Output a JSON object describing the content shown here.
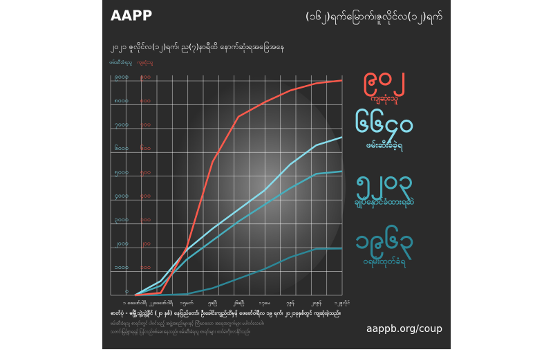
{
  "chart_data": {
    "type": "line",
    "header": "AAPP",
    "title": "(၁၆၂)ရက်မြောက်၊ဇူလိုင်လ(၁၂)ရက်",
    "subtitle": "၂၀၂၁  ဇူလိုင်လ(၁၂)ရက်၊  ည(၇)နာရီထိ    နောက်ဆုံးရအခြေအနေ",
    "y_label": "ဖမ်းဆီးခံရသူ",
    "y2_label": "ကျဆုံးသူ",
    "categories": [
      "၁ ဖေဖော်ဝါရီ",
      "၂၂ဖေဖော်ဝါရီ",
      "၁၅မတ်",
      "၅ဧပြီ",
      "၂၆ဧပြီ",
      "၁၇မေ",
      "၇ဇွန်",
      "၂၈ဇွန်",
      "၁၂ဇူလိုင်"
    ],
    "ylim": [
      0,
      9000
    ],
    "yticks": [
      {
        "value": 0,
        "label": "၀"
      },
      {
        "value": 1000,
        "label": "၁၀၀၀"
      },
      {
        "value": 2000,
        "label": "၂၀၀၀"
      },
      {
        "value": 3000,
        "label": "၃၀၀၀"
      },
      {
        "value": 4000,
        "label": "၄၀၀၀"
      },
      {
        "value": 5000,
        "label": "၅၀၀၀"
      },
      {
        "value": 6000,
        "label": "၆၀၀၀"
      },
      {
        "value": 7000,
        "label": "၇၀၀၀"
      },
      {
        "value": 8000,
        "label": "၈၀၀၀"
      },
      {
        "value": 9000,
        "label": "၉၀၀၀"
      }
    ],
    "y2lim": [
      0,
      900
    ],
    "y2ticks": [
      {
        "value": 100,
        "label": "၁၀၀"
      },
      {
        "value": 200,
        "label": "၂၀၀"
      },
      {
        "value": 300,
        "label": "၃၀၀"
      },
      {
        "value": 400,
        "label": "၄၀၀"
      },
      {
        "value": 500,
        "label": "၅၀၀"
      },
      {
        "value": 600,
        "label": "၆၀၀"
      },
      {
        "value": 700,
        "label": "၇၀၀"
      },
      {
        "value": 800,
        "label": "၈၀၀"
      },
      {
        "value": 900,
        "label": "၉၀၀"
      }
    ],
    "grid": true,
    "series": [
      {
        "name": "ကျဆုံးသူ",
        "color": "#ff5a4c",
        "axis": "y2",
        "values": [
          0,
          10,
          200,
          560,
          750,
          810,
          860,
          890,
          902
        ],
        "value_labels": [
          null,
          null,
          null,
          null,
          null,
          null,
          null,
          null,
          "၉၀၂"
        ]
      },
      {
        "name": "ဖမ်းဆီးခံခဲ့ရ",
        "color": "#86dcec",
        "values": [
          0,
          600,
          1900,
          2800,
          3600,
          4400,
          5500,
          6300,
          6640
        ],
        "value_labels": [
          null,
          null,
          null,
          null,
          null,
          null,
          null,
          null,
          "၆၆၄၀"
        ]
      },
      {
        "name": "ချုပ်နှောင်ခံထားရဆဲ",
        "color": "#46aebd",
        "values": [
          0,
          400,
          1500,
          2300,
          3100,
          3800,
          4500,
          5100,
          5203
        ],
        "value_labels": [
          null,
          null,
          null,
          null,
          null,
          null,
          null,
          null,
          "၅၂၀၃"
        ]
      },
      {
        "name": "ဝရမ်းထုတ်ခံရ",
        "color": "#2c8797",
        "values": [
          0,
          10,
          50,
          300,
          700,
          1100,
          1600,
          1950,
          1963
        ],
        "value_labels": [
          null,
          null,
          null,
          null,
          null,
          null,
          null,
          null,
          "၁၉၆၃"
        ]
      }
    ],
    "caption": "ဓာတ်ပုံ - မမြို့သွဲ့သွဲ့ခိုင် (၂၀ နှစ်) နေပြည်တော်၊ ဦးခေါင်းကျည်ထိမှန် ဖေဖော်ဝါရီလ ၁၉ ရက်၊ ၂၀၂၁ခုနှစ်တွင် ကျဆုံးခဲ့သည်။",
    "notes": [
      "ဖမ်းဆီးခံရသူ စာရင်းတွင် ပါဝင်သည့် အဖွဲ့အစည်းများနှင့် ကြီးမားသော အရေအတွက်များ မပါဝင်သေးပါ။",
      "သတင်းမြန်စွာရရန် ပြန်လည်စစ်ဆေးနေသည်။ ဖမ်းဆီးခံရသူ စာရင်းများ ထပ်မံတိုးလာနိုင်သည်။"
    ],
    "url": "aappb.org/coup"
  }
}
